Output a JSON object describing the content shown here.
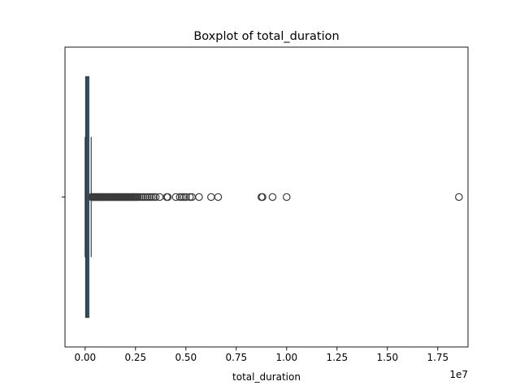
{
  "chart_data": {
    "type": "box",
    "title": "Boxplot of total_duration",
    "xlabel": "total_duration",
    "ylabel": "",
    "scale_label": "1e7",
    "xlim": [
      -0.1,
      1.9
    ],
    "xticks": [
      0.0,
      0.25,
      0.5,
      0.75,
      1.0,
      1.25,
      1.5,
      1.75
    ],
    "xtick_labels": [
      "0.00",
      "0.25",
      "0.50",
      "0.75",
      "1.00",
      "1.25",
      "1.50",
      "1.75"
    ],
    "orientation": "horizontal",
    "grid": false,
    "box": {
      "whisker_low": 0.0,
      "q1": 0.003,
      "median": 0.009,
      "q3": 0.018,
      "whisker_high": 0.03
    },
    "outliers": [
      0.032,
      0.036,
      0.04,
      0.044,
      0.048,
      0.052,
      0.056,
      0.06,
      0.064,
      0.068,
      0.072,
      0.076,
      0.08,
      0.085,
      0.09,
      0.095,
      0.1,
      0.105,
      0.11,
      0.115,
      0.12,
      0.125,
      0.13,
      0.135,
      0.14,
      0.145,
      0.15,
      0.155,
      0.16,
      0.165,
      0.17,
      0.175,
      0.18,
      0.185,
      0.19,
      0.195,
      0.2,
      0.205,
      0.21,
      0.215,
      0.22,
      0.225,
      0.23,
      0.235,
      0.24,
      0.245,
      0.25,
      0.255,
      0.26,
      0.27,
      0.28,
      0.29,
      0.3,
      0.31,
      0.32,
      0.33,
      0.34,
      0.35,
      0.37,
      0.405,
      0.41,
      0.45,
      0.47,
      0.48,
      0.49,
      0.5,
      0.52,
      0.53,
      0.565,
      0.625,
      0.66,
      0.875,
      0.88,
      0.93,
      1.0,
      1.855
    ],
    "colors": {
      "box_edge": "#3b3b3b",
      "box_fill": "#1f77b4",
      "outlier_edge": "#3b3b3b"
    }
  }
}
